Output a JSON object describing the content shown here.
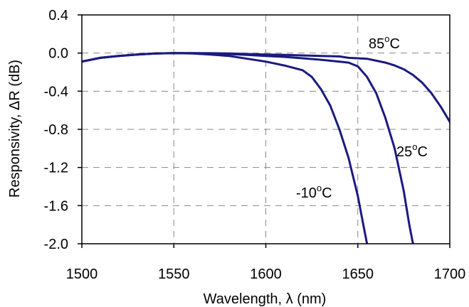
{
  "chart_data": {
    "type": "line",
    "xlabel": "Wavelength, λ (nm)",
    "ylabel": "Responsivity, ΔR (dB)",
    "xlim": [
      1500,
      1700
    ],
    "ylim": [
      -2.0,
      0.4
    ],
    "x_ticks": [
      "1500",
      "1550",
      "1600",
      "1650",
      "1700"
    ],
    "y_ticks": [
      "0.4",
      "0.0",
      "-0.4",
      "-0.8",
      "-1.2",
      "-1.6",
      "-2.0"
    ],
    "grid": true,
    "line_color": "#1a1a80",
    "series": [
      {
        "name": "-10°C",
        "label_main": "-10",
        "label_sup": "o",
        "label_unit": "C",
        "x": [
          1500,
          1510,
          1520,
          1530,
          1540,
          1550,
          1560,
          1570,
          1580,
          1590,
          1600,
          1610,
          1620,
          1625,
          1630,
          1635,
          1640,
          1645,
          1650,
          1653,
          1655
        ],
        "y": [
          -0.09,
          -0.05,
          -0.03,
          -0.015,
          -0.005,
          0.0,
          -0.005,
          -0.015,
          -0.03,
          -0.06,
          -0.09,
          -0.13,
          -0.18,
          -0.25,
          -0.38,
          -0.55,
          -0.8,
          -1.1,
          -1.5,
          -1.8,
          -2.0
        ]
      },
      {
        "name": "25°C",
        "label_main": "25",
        "label_sup": "o",
        "label_unit": "C",
        "x": [
          1500,
          1510,
          1520,
          1530,
          1540,
          1550,
          1560,
          1570,
          1580,
          1590,
          1600,
          1610,
          1620,
          1630,
          1640,
          1645,
          1650,
          1655,
          1660,
          1665,
          1670,
          1675,
          1678,
          1680
        ],
        "y": [
          -0.09,
          -0.05,
          -0.03,
          -0.015,
          -0.005,
          0.0,
          -0.002,
          -0.005,
          -0.01,
          -0.02,
          -0.03,
          -0.04,
          -0.055,
          -0.07,
          -0.09,
          -0.1,
          -0.14,
          -0.25,
          -0.42,
          -0.68,
          -1.0,
          -1.45,
          -1.8,
          -2.0
        ]
      },
      {
        "name": "85°C",
        "label_main": "85",
        "label_sup": "o",
        "label_unit": "C",
        "x": [
          1500,
          1510,
          1520,
          1530,
          1540,
          1550,
          1560,
          1570,
          1580,
          1590,
          1600,
          1610,
          1620,
          1630,
          1640,
          1645,
          1650,
          1655,
          1660,
          1665,
          1670,
          1675,
          1680,
          1685,
          1690,
          1695,
          1700,
          1702
        ],
        "y": [
          -0.09,
          -0.05,
          -0.03,
          -0.015,
          -0.005,
          0.0,
          0.0,
          -0.002,
          -0.005,
          -0.01,
          -0.015,
          -0.02,
          -0.025,
          -0.03,
          -0.035,
          -0.05,
          -0.055,
          -0.06,
          -0.08,
          -0.1,
          -0.13,
          -0.17,
          -0.23,
          -0.31,
          -0.42,
          -0.56,
          -0.72,
          -0.8
        ]
      }
    ]
  }
}
